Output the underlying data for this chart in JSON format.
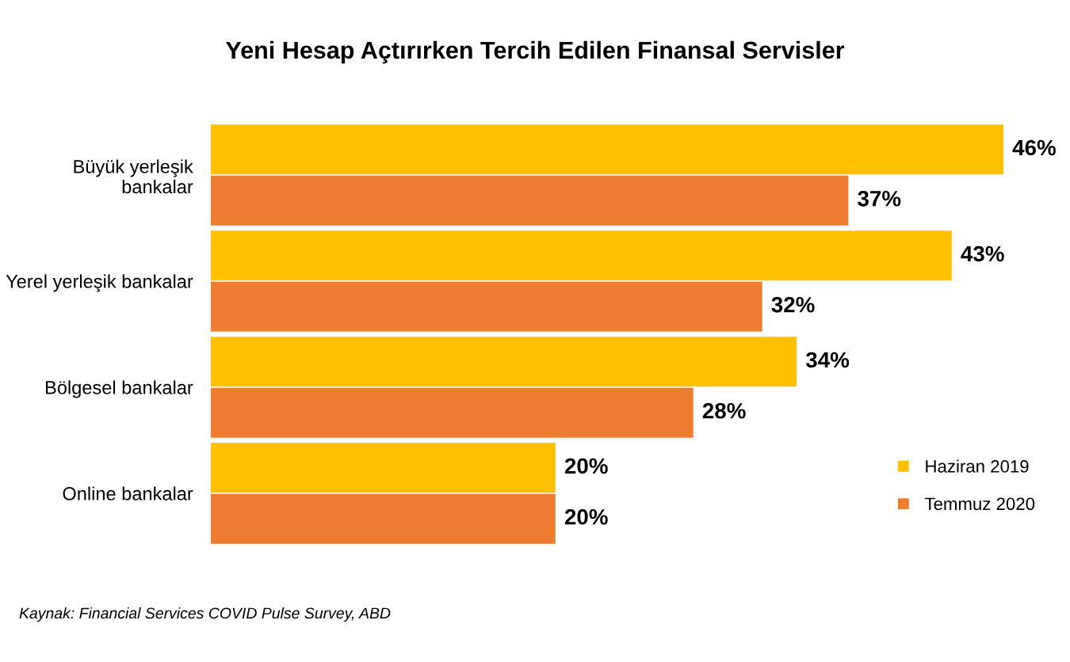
{
  "chart_data": {
    "type": "bar",
    "orientation": "horizontal",
    "title": "Yeni Hesap Açtırırken Tercih Edilen Finansal Servisler",
    "categories": [
      "Büyük yerleşik\nbankalar",
      "Yerel yerleşik bankalar",
      "Bölgesel bankalar",
      "Online bankalar"
    ],
    "series": [
      {
        "name": "Haziran 2019",
        "color": "#ffc000",
        "values": [
          46,
          43,
          34,
          20
        ],
        "value_labels": [
          "46%",
          "43%",
          "34%",
          "20%"
        ]
      },
      {
        "name": "Temmuz 2020",
        "color": "#ed7d31",
        "values": [
          37,
          32,
          28,
          20
        ],
        "value_labels": [
          "37%",
          "32%",
          "28%",
          "20%"
        ]
      }
    ],
    "legend": "bottom right",
    "grid": false,
    "annotations": [
      "Kaynak: Financial Services COVID Pulse Survey, ABD"
    ]
  }
}
